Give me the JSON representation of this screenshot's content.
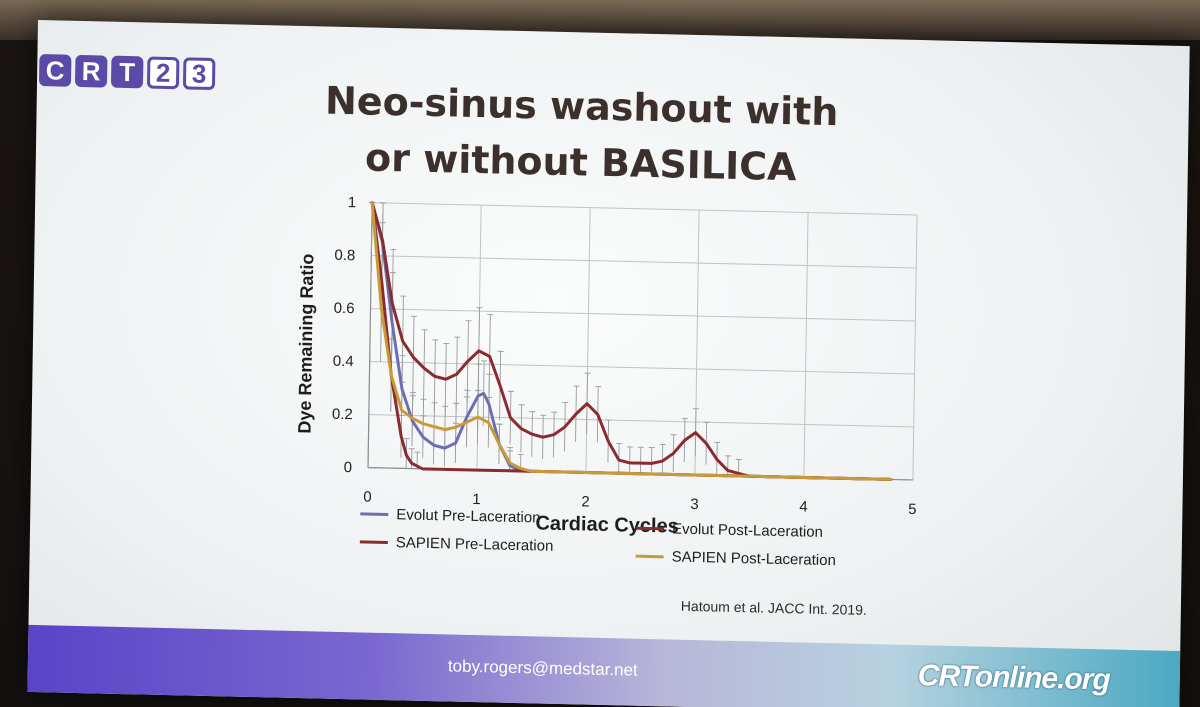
{
  "logo": {
    "letters": [
      "C",
      "R",
      "T",
      "2",
      "3"
    ]
  },
  "title_line1": "Neo-sinus washout with",
  "title_line2": "or without BASILICA",
  "citation": "Hatoum et al. JACC Int. 2019.",
  "footer": {
    "email": "toby.rogers@medstar.net",
    "brand": "CRTonline.org"
  },
  "chart_data": {
    "type": "line",
    "xlabel": "Cardiac Cycles",
    "ylabel": "Dye Remaining Ratio",
    "xlim": [
      0,
      5
    ],
    "ylim": [
      0,
      1
    ],
    "xticks": [
      "0",
      "1",
      "2",
      "3",
      "4",
      "5"
    ],
    "yticks": [
      "0",
      "0.2",
      "0.4",
      "0.6",
      "0.8",
      "1"
    ],
    "grid": true,
    "legend_position": "bottom",
    "series": [
      {
        "name": "Evolut Pre-Laceration",
        "color": "#6b6fb0",
        "x": [
          0,
          0.1,
          0.2,
          0.3,
          0.4,
          0.5,
          0.6,
          0.7,
          0.8,
          0.9,
          1.0,
          1.05,
          1.1,
          1.2,
          1.3,
          1.4,
          1.6,
          2.0,
          3.0,
          4.0,
          4.8
        ],
        "y": [
          1.0,
          0.85,
          0.55,
          0.3,
          0.18,
          0.12,
          0.09,
          0.08,
          0.1,
          0.2,
          0.28,
          0.29,
          0.25,
          0.1,
          0.02,
          0.0,
          0.0,
          0.0,
          0.0,
          0.0,
          0.0
        ]
      },
      {
        "name": "Evolut Post-Laceration",
        "color": "#8b2a2f",
        "x": [
          0,
          0.1,
          0.2,
          0.3,
          0.4,
          0.5,
          0.6,
          0.7,
          0.8,
          0.9,
          1.0,
          1.1,
          1.2,
          1.3,
          1.4,
          1.5,
          1.6,
          1.7,
          1.8,
          1.9,
          2.0,
          2.1,
          2.2,
          2.3,
          2.4,
          2.5,
          2.6,
          2.7,
          2.8,
          2.9,
          3.0,
          3.1,
          3.2,
          3.3,
          3.4,
          3.5,
          4.0,
          4.8
        ],
        "y": [
          1.0,
          0.86,
          0.62,
          0.48,
          0.42,
          0.38,
          0.35,
          0.34,
          0.36,
          0.41,
          0.45,
          0.43,
          0.32,
          0.2,
          0.16,
          0.14,
          0.13,
          0.14,
          0.17,
          0.22,
          0.26,
          0.22,
          0.12,
          0.05,
          0.04,
          0.04,
          0.04,
          0.05,
          0.08,
          0.13,
          0.16,
          0.12,
          0.06,
          0.02,
          0.01,
          0.0,
          0.0,
          0.0
        ]
      },
      {
        "name": "SAPIEN Pre-Laceration",
        "color": "#8b2a2f",
        "x": [
          0,
          0.1,
          0.2,
          0.3,
          0.35,
          0.4,
          0.45,
          0.5,
          0.6,
          1.0,
          2.0,
          3.0,
          4.0,
          4.8
        ],
        "y": [
          1.0,
          0.7,
          0.35,
          0.12,
          0.05,
          0.02,
          0.01,
          0.0,
          0.0,
          0.0,
          0.0,
          0.0,
          0.0,
          0.0
        ]
      },
      {
        "name": "SAPIEN Post-Laceration",
        "color": "#c89a3a",
        "x": [
          0,
          0.1,
          0.2,
          0.3,
          0.4,
          0.5,
          0.6,
          0.7,
          0.8,
          0.9,
          1.0,
          1.1,
          1.2,
          1.3,
          1.4,
          1.5,
          2.0,
          3.0,
          4.0,
          4.8
        ],
        "y": [
          1.0,
          0.6,
          0.35,
          0.22,
          0.19,
          0.17,
          0.16,
          0.15,
          0.16,
          0.18,
          0.2,
          0.18,
          0.1,
          0.03,
          0.01,
          0.0,
          0.0,
          0.0,
          0.0,
          0.0
        ]
      }
    ]
  }
}
